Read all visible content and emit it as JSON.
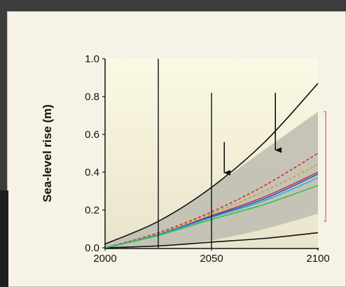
{
  "chart_data": {
    "type": "line",
    "title": "",
    "xlabel": "",
    "ylabel": "Sea-level rise (m)",
    "xlim": [
      2000,
      2100
    ],
    "ylim": [
      0.0,
      1.0
    ],
    "x_ticks": [
      "2000",
      "2050",
      "2100"
    ],
    "y_ticks": [
      "0.0",
      "0.2",
      "0.4",
      "0.6",
      "0.8",
      "1.0"
    ],
    "grid": false,
    "uncertainty_band": {
      "x": [
        2000,
        2025,
        2050,
        2075,
        2100
      ],
      "lower": [
        0.0,
        0.01,
        0.04,
        0.1,
        0.18
      ],
      "upper": [
        0.02,
        0.14,
        0.32,
        0.52,
        0.72
      ],
      "color": "#bdbcb0"
    },
    "series": [
      {
        "x": [
          2000,
          2025,
          2050,
          2075,
          2100
        ],
        "values": [
          0.02,
          0.14,
          0.32,
          0.56,
          0.87
        ],
        "color": "#111111",
        "style": "solid"
      },
      {
        "x": [
          2000,
          2025,
          2050,
          2075,
          2100
        ],
        "values": [
          0.0,
          0.01,
          0.03,
          0.05,
          0.08
        ],
        "color": "#111111",
        "style": "solid"
      },
      {
        "x": [
          2000,
          2025,
          2050,
          2075,
          2100
        ],
        "values": [
          0.0,
          0.08,
          0.19,
          0.33,
          0.5
        ],
        "color": "#d42020",
        "style": "dashed"
      },
      {
        "x": [
          2000,
          2025,
          2050,
          2075,
          2100
        ],
        "values": [
          0.0,
          0.075,
          0.18,
          0.3,
          0.44
        ],
        "color": "#c8a030",
        "style": "dashed"
      },
      {
        "x": [
          2000,
          2025,
          2050,
          2075,
          2100
        ],
        "values": [
          0.0,
          0.07,
          0.17,
          0.27,
          0.4
        ],
        "color": "#c03030",
        "style": "solid"
      },
      {
        "x": [
          2000,
          2025,
          2050,
          2075,
          2100
        ],
        "values": [
          0.0,
          0.07,
          0.165,
          0.26,
          0.39
        ],
        "color": "#2a4fd0",
        "style": "solid"
      },
      {
        "x": [
          2000,
          2025,
          2050,
          2075,
          2100
        ],
        "values": [
          0.0,
          0.068,
          0.16,
          0.25,
          0.37
        ],
        "color": "#30b0d0",
        "style": "solid"
      },
      {
        "x": [
          2000,
          2025,
          2050,
          2075,
          2100
        ],
        "values": [
          0.0,
          0.065,
          0.15,
          0.23,
          0.33
        ],
        "color": "#30c040",
        "style": "solid"
      }
    ],
    "vertical_lines": [
      {
        "x": 2025,
        "y_top": 1.0
      },
      {
        "x": 2050,
        "y_top": 0.82
      }
    ],
    "arrows": [
      {
        "x": 2056,
        "y_from": 0.56,
        "y_to": 0.36
      },
      {
        "x": 2080,
        "y_from": 0.82,
        "y_to": 0.48
      }
    ],
    "range_bracket": {
      "x": 2103,
      "y_low": 0.14,
      "y_high": 0.72,
      "color": "#e07070"
    },
    "background_gradient": [
      "#fbf8e4",
      "#e9e4cb"
    ]
  }
}
